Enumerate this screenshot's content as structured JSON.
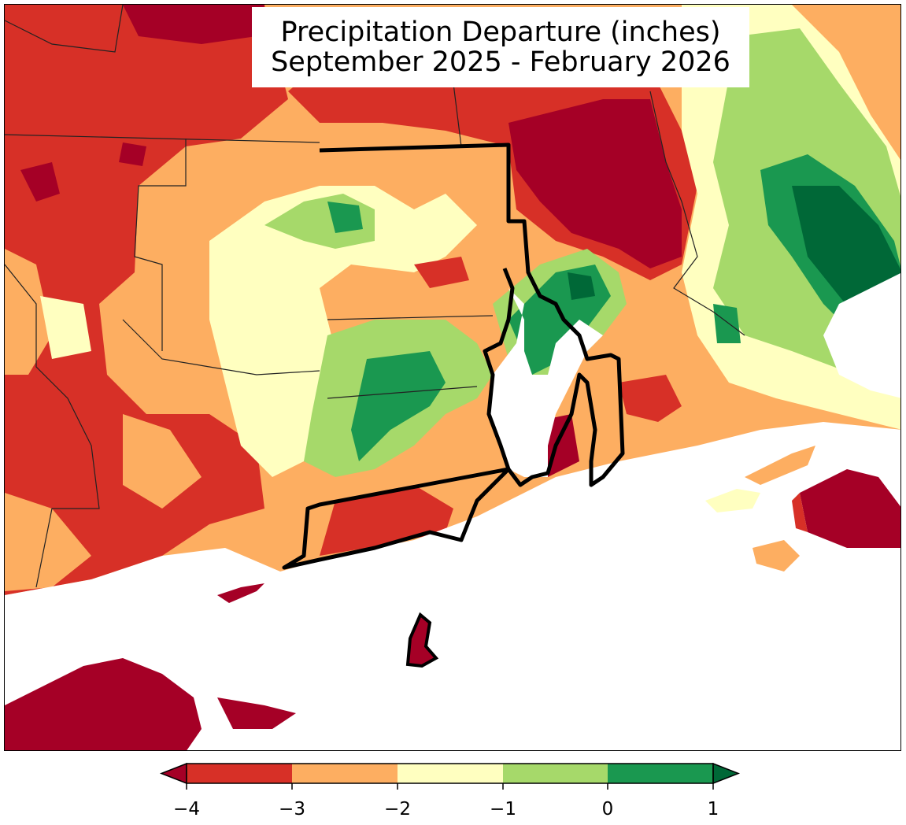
{
  "title": {
    "line1": "Precipitation Departure (inches)",
    "line2": "September 2025 - February 2026"
  },
  "colors": {
    "lt_neg4": "#a50026",
    "neg4_neg3": "#d73027",
    "neg3_neg2": "#fdae61",
    "neg2_neg1": "#ffffc0",
    "neg1_0": "#a6d96a",
    "zero_1": "#1a9850",
    "gt_1": "#006837",
    "water": "#ffffff",
    "border": "#000000"
  },
  "colorbar": {
    "ticks": [
      "−4",
      "−3",
      "−2",
      "−1",
      "0",
      "1"
    ],
    "values": [
      -4,
      -3,
      -2,
      -1,
      0,
      1
    ],
    "extend": "both"
  },
  "map": {
    "focus_state": "Rhode Island",
    "region": "Southern New England"
  }
}
